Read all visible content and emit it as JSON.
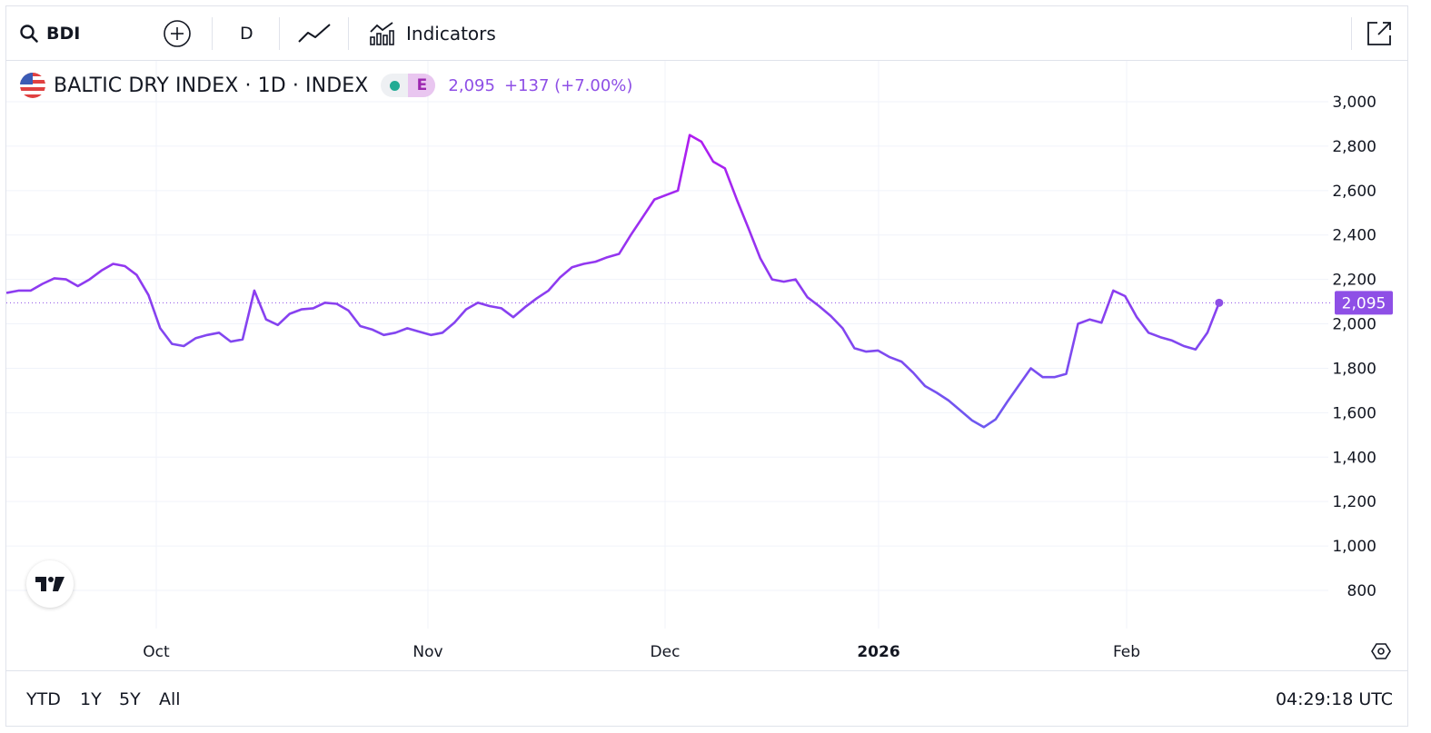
{
  "toolbar": {
    "symbol": "BDI",
    "interval": "D",
    "indicators_label": "Indicators"
  },
  "legend": {
    "title": "BALTIC DRY INDEX · 1D · INDEX",
    "status_badge": "E",
    "last_value": "2,095",
    "change": "+137 (+7.00%)"
  },
  "footer": {
    "ranges": [
      "YTD",
      "1Y",
      "5Y",
      "All"
    ],
    "clock": "04:29:18 UTC"
  },
  "colors": {
    "line_start": "#6a5cf0",
    "line_peak": "#b01cf0",
    "price_label_bg": "#8e4fe6",
    "grid": "#f0f3fa",
    "text": "#131722"
  },
  "chart_data": {
    "type": "line",
    "series": [
      {
        "values": [
          2140,
          2150,
          2150,
          2180,
          2205,
          2200,
          2170,
          2200,
          2240,
          2270,
          2260,
          2220,
          2130,
          1980,
          1910,
          1900,
          1935,
          1950,
          1960,
          1920,
          1930,
          2150,
          2020,
          1995,
          2045,
          2065,
          2070,
          2095,
          2090,
          2060,
          1990,
          1975,
          1950,
          1960,
          1980,
          1965,
          1950,
          1960,
          2005,
          2065,
          2095,
          2080,
          2070,
          2030,
          2075,
          2115,
          2150,
          2210,
          2255,
          2270,
          2280,
          2300,
          2315,
          2400,
          2480,
          2560,
          2580,
          2600,
          2850,
          2820,
          2730,
          2700,
          2560,
          2430,
          2295,
          2200,
          2190,
          2200,
          2120,
          2080,
          2035,
          1980,
          1890,
          1875,
          1880,
          1850,
          1830,
          1780,
          1720,
          1690,
          1655,
          1610,
          1565,
          1535,
          1570,
          1650,
          1725,
          1800,
          1760,
          1760,
          1775,
          2000,
          2020,
          2005,
          2150,
          2125,
          2030,
          1960,
          1940,
          1925,
          1900,
          1885,
          1960,
          2095
        ]
      }
    ],
    "x_labels": [
      "Oct",
      "Nov",
      "Dec",
      "2026",
      "Feb"
    ],
    "x_label_positions": [
      13,
      36,
      56,
      74,
      95
    ],
    "y_ticks": [
      800,
      1000,
      1200,
      1400,
      1600,
      1800,
      2000,
      2200,
      2400,
      2600,
      2800,
      3000
    ],
    "y_tick_labels": [
      "800",
      "1,000",
      "1,200",
      "1,400",
      "1,600",
      "1,800",
      "2,000",
      "2,200",
      "2,400",
      "2,600",
      "2,800",
      "3,000"
    ],
    "ylim": [
      620,
      3000
    ],
    "last_price_label": "2,095",
    "grid": true
  }
}
